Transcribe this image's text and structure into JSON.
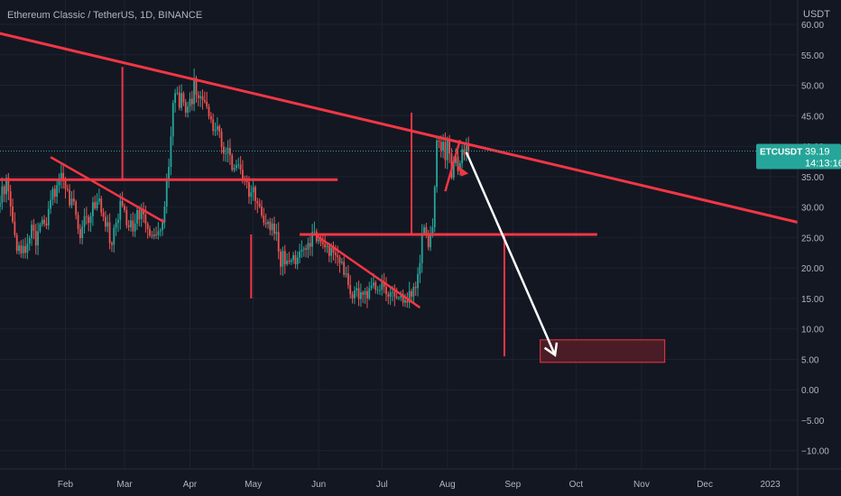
{
  "symbol_title": "Ethereum Classic / TetherUS, 1D, BINANCE",
  "currency_label": "USDT",
  "price_tag": {
    "symbol": "ETCUSDT",
    "price": "39.19",
    "countdown": "14:13:16"
  },
  "colors": {
    "background": "#131722",
    "grid": "#1e2230",
    "up": "#26a69a",
    "down": "#ef5350",
    "drawing": "#f23645",
    "arrow": "#ffffff",
    "axis_text": "#b2b5be",
    "tag_bg": "#26a69a",
    "zone_fill": "#4a1d26"
  },
  "chart_data": {
    "type": "candlestick",
    "title": "Ethereum Classic / TetherUS, 1D, BINANCE",
    "ylim": [
      -13,
      64
    ],
    "xlim": [
      "2022-01-01",
      "2023-01-14"
    ],
    "y_ticks": [
      60,
      55,
      50,
      45,
      40,
      35,
      30,
      25,
      20,
      15,
      10,
      5,
      0,
      -5,
      -10
    ],
    "y_tick_labels": [
      "60.00",
      "55.00",
      "50.00",
      "45.00",
      "40.00",
      "35.00",
      "30.00",
      "25.00",
      "20.00",
      "15.00",
      "10.00",
      "5.00",
      "0.00",
      "−5.00",
      "−10.00"
    ],
    "x_ticks": [
      {
        "label": "Feb",
        "date": "2022-02-01"
      },
      {
        "label": "Mar",
        "date": "2022-03-01"
      },
      {
        "label": "Apr",
        "date": "2022-04-01"
      },
      {
        "label": "May",
        "date": "2022-05-01"
      },
      {
        "label": "Jun",
        "date": "2022-06-01"
      },
      {
        "label": "Jul",
        "date": "2022-07-01"
      },
      {
        "label": "Aug",
        "date": "2022-08-01"
      },
      {
        "label": "Sep",
        "date": "2022-09-01"
      },
      {
        "label": "Oct",
        "date": "2022-10-01"
      },
      {
        "label": "Nov",
        "date": "2022-11-01"
      },
      {
        "label": "Dec",
        "date": "2022-12-01"
      },
      {
        "label": "2023",
        "date": "2023-01-01"
      }
    ],
    "grid": true,
    "series_start": "2022-01-01",
    "last_price": 39.19,
    "closes": [
      30.7,
      33.4,
      32.1,
      34.8,
      32.6,
      30.1,
      27.6,
      25.4,
      22.8,
      23.7,
      22.4,
      23.6,
      22.5,
      24.0,
      24.9,
      27.1,
      26.1,
      23.7,
      26.0,
      27.2,
      27.9,
      27.3,
      27.0,
      29.7,
      31.2,
      33.0,
      31.7,
      33.6,
      34.4,
      35.6,
      34.5,
      33.0,
      32.8,
      30.3,
      31.4,
      30.9,
      28.7,
      26.4,
      24.9,
      26.8,
      28.5,
      28.4,
      27.4,
      28.5,
      30.8,
      29.8,
      30.9,
      31.4,
      29.1,
      28.4,
      26.8,
      27.5,
      24.1,
      23.8,
      26.6,
      27.4,
      27.9,
      31.0,
      30.2,
      29.5,
      27.0,
      26.7,
      27.8,
      26.0,
      27.3,
      29.5,
      28.0,
      29.6,
      28.8,
      27.3,
      26.4,
      25.3,
      25.2,
      25.5,
      25.4,
      26.0,
      26.2,
      27.5,
      30.1,
      34.4,
      36.6,
      41.6,
      47.1,
      48.7,
      48.8,
      46.3,
      48.7,
      47.2,
      45.5,
      46.5,
      47.8,
      46.9,
      51.2,
      48.4,
      47.9,
      48.2,
      47.6,
      47.3,
      46.5,
      44.9,
      44.4,
      42.5,
      42.7,
      43.3,
      42.4,
      39.9,
      38.8,
      38.8,
      39.7,
      38.5,
      36.1,
      36.4,
      36.9,
      37.0,
      36.1,
      34.7,
      34.5,
      34.1,
      31.7,
      32.4,
      33.3,
      31.0,
      30.6,
      30.1,
      28.6,
      27.4,
      27.2,
      27.6,
      26.2,
      27.3,
      25.6,
      25.9,
      22.7,
      20.2,
      22.8,
      20.6,
      21.2,
      21.0,
      21.3,
      22.1,
      20.6,
      21.7,
      22.7,
      23.0,
      23.2,
      23.0,
      24.1,
      23.5,
      25.9,
      26.0,
      24.4,
      24.7,
      24.2,
      23.9,
      23.4,
      23.6,
      22.0,
      23.3,
      22.5,
      22.1,
      21.8,
      20.8,
      21.0,
      18.9,
      19.1,
      17.2,
      15.7,
      15.0,
      16.3,
      16.7,
      14.9,
      16.0,
      15.6,
      16.2,
      15.0,
      16.7,
      17.1,
      17.6,
      16.4,
      16.4,
      16.4,
      17.8,
      16.9,
      15.7,
      15.3,
      16.0,
      16.1,
      15.3,
      15.1,
      15.1,
      15.7,
      14.3,
      14.7,
      14.3,
      16.2,
      15.3,
      16.9,
      16.7,
      19.0,
      20.8,
      25.6,
      26.7,
      25.3,
      23.4,
      25.7,
      26.7,
      33.3,
      40.9,
      40.7,
      39.3,
      40.7,
      37.7,
      41.2,
      38.8,
      34.8,
      37.2,
      38.3,
      35.9,
      37.2,
      39.5,
      38.6,
      40.1,
      39.19
    ]
  },
  "drawings": {
    "main_trendline": [
      [
        "2021-12-26",
        59.0
      ],
      [
        "2023-01-14",
        27.5
      ]
    ],
    "horizontal_lines": [
      {
        "y": 34.5,
        "from": "2022-01-01",
        "to": "2022-06-10"
      },
      {
        "y": 25.5,
        "from": "2022-05-23",
        "to": "2022-10-11"
      }
    ],
    "diagonal_lines": [
      {
        "from": [
          "2022-01-25",
          38.2
        ],
        "to": [
          "2022-03-20",
          27.5
        ]
      },
      {
        "from": [
          "2022-05-31",
          25.3
        ],
        "to": [
          "2022-07-19",
          13.5
        ]
      },
      {
        "from": [
          "2022-07-31",
          32.6
        ],
        "to": [
          "2022-08-07",
          41.0
        ]
      }
    ],
    "vertical_lines": [
      {
        "x": "2022-02-28",
        "y": [
          53.0,
          34.5
        ]
      },
      {
        "x": "2022-04-30",
        "y": [
          25.5,
          15.0
        ]
      },
      {
        "x": "2022-07-15",
        "y": [
          45.5,
          25.5
        ]
      },
      {
        "x": "2022-08-28",
        "y": [
          25.5,
          5.5
        ]
      }
    ],
    "target_zone": {
      "from": "2022-09-14",
      "to": "2022-11-12",
      "y": [
        4.5,
        8.2
      ]
    },
    "projection_arrow": {
      "from": [
        "2022-08-10",
        39.0
      ],
      "to": [
        "2022-09-21",
        5.7
      ]
    },
    "small_arrow_head": [
      "2022-08-11",
      35.5
    ]
  }
}
